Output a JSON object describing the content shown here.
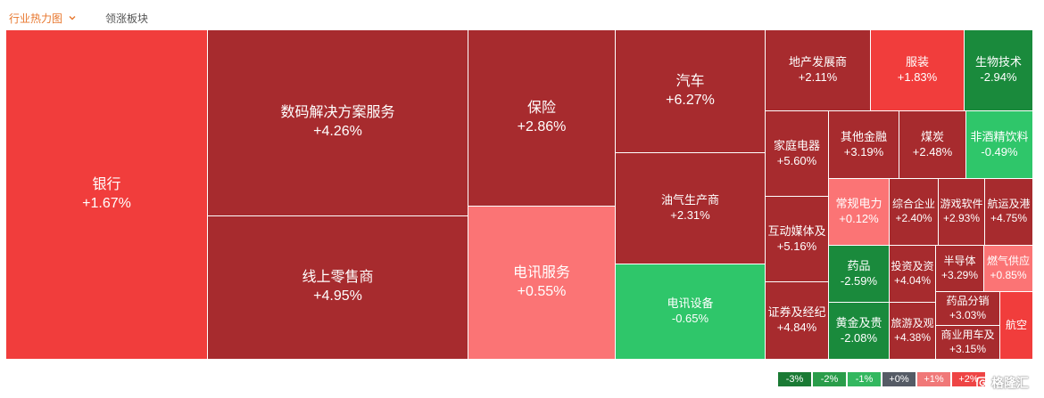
{
  "tabs": {
    "active": "行业热力图",
    "other": "领涨板块"
  },
  "colors": {
    "pos_strong": "#a72b2e",
    "pos_mid": "#f13d3c",
    "pos_light": "#fb7475",
    "neg_dark": "#1a8a3c",
    "neg_mid": "#2fc66a",
    "neg_light": "#2db95e",
    "neutral": "#555b65"
  },
  "chart_data": {
    "type": "treemap",
    "cells": [
      {
        "name": "银行",
        "change": 1.67,
        "label": "+1.67%"
      },
      {
        "name": "数码解决方案服务",
        "change": 4.26,
        "label": "+4.26%"
      },
      {
        "name": "线上零售商",
        "change": 4.95,
        "label": "+4.95%"
      },
      {
        "name": "保险",
        "change": 2.86,
        "label": "+2.86%"
      },
      {
        "name": "电讯服务",
        "change": 0.55,
        "label": "+0.55%"
      },
      {
        "name": "汽车",
        "change": 6.27,
        "label": "+6.27%"
      },
      {
        "name": "油气生产商",
        "change": 2.31,
        "label": "+2.31%"
      },
      {
        "name": "电讯设备",
        "change": -0.65,
        "label": "-0.65%"
      },
      {
        "name": "地产发展商",
        "change": 2.11,
        "label": "+2.11%"
      },
      {
        "name": "服装",
        "change": 1.83,
        "label": "+1.83%"
      },
      {
        "name": "生物技术",
        "change": -2.94,
        "label": "-2.94%"
      },
      {
        "name": "家庭电器",
        "change": 5.6,
        "label": "+5.60%"
      },
      {
        "name": "其他金融",
        "change": 3.19,
        "label": "+3.19%"
      },
      {
        "name": "煤炭",
        "change": 2.48,
        "label": "+2.48%"
      },
      {
        "name": "非酒精饮料",
        "change": -0.49,
        "label": "-0.49%"
      },
      {
        "name": "互动媒体及",
        "change": 5.16,
        "label": "+5.16%"
      },
      {
        "name": "常规电力",
        "change": 0.12,
        "label": "+0.12%"
      },
      {
        "name": "综合企业",
        "change": 2.4,
        "label": "+2.40%"
      },
      {
        "name": "游戏软件",
        "change": 2.93,
        "label": "+2.93%"
      },
      {
        "name": "航运及港",
        "change": 4.75,
        "label": "+4.75%"
      },
      {
        "name": "药品",
        "change": -2.59,
        "label": "-2.59%"
      },
      {
        "name": "投资及资",
        "change": 4.04,
        "label": "+4.04%"
      },
      {
        "name": "半导体",
        "change": 3.29,
        "label": "+3.29%"
      },
      {
        "name": "燃气供应",
        "change": 0.85,
        "label": "+0.85%"
      },
      {
        "name": "证券及经纪",
        "change": 4.84,
        "label": "+4.84%"
      },
      {
        "name": "黄金及贵",
        "change": -2.08,
        "label": "-2.08%"
      },
      {
        "name": "旅游及观",
        "change": 4.38,
        "label": "+4.38%"
      },
      {
        "name": "药品分销",
        "change": 3.03,
        "label": "+3.03%"
      },
      {
        "name": "商业用车及",
        "change": 3.15,
        "label": "+3.15%"
      },
      {
        "name": "航空",
        "change": null,
        "label": ""
      }
    ],
    "legend": [
      "-3%",
      "-2%",
      "-1%",
      "+0%",
      "+1%",
      "+2%"
    ]
  },
  "watermark": "格隆汇"
}
